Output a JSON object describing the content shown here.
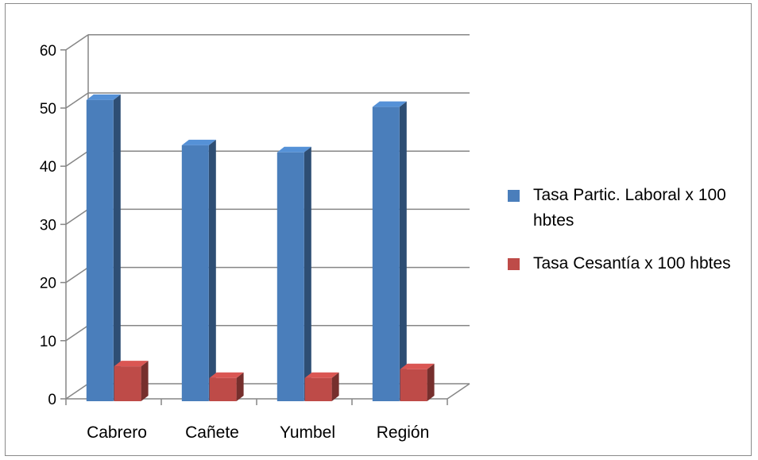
{
  "chart_data": {
    "type": "bar",
    "categories": [
      "Cabrero",
      "Cañete",
      "Yumbel",
      "Región"
    ],
    "series": [
      {
        "name": "Tasa Partic. Laboral x 100 hbtes",
        "values": [
          51.8,
          44.0,
          42.8,
          50.6
        ],
        "color": "#4a7ebb"
      },
      {
        "name": "Tasa Cesantía x 100 hbtes",
        "values": [
          6.0,
          4.0,
          4.0,
          5.5
        ],
        "color": "#be4b48"
      }
    ],
    "y_ticks": [
      "0",
      "10",
      "20",
      "30",
      "40",
      "50",
      "60"
    ],
    "ylim": [
      0,
      60
    ],
    "grid": true,
    "legend_position": "right",
    "style": "3d-column"
  }
}
